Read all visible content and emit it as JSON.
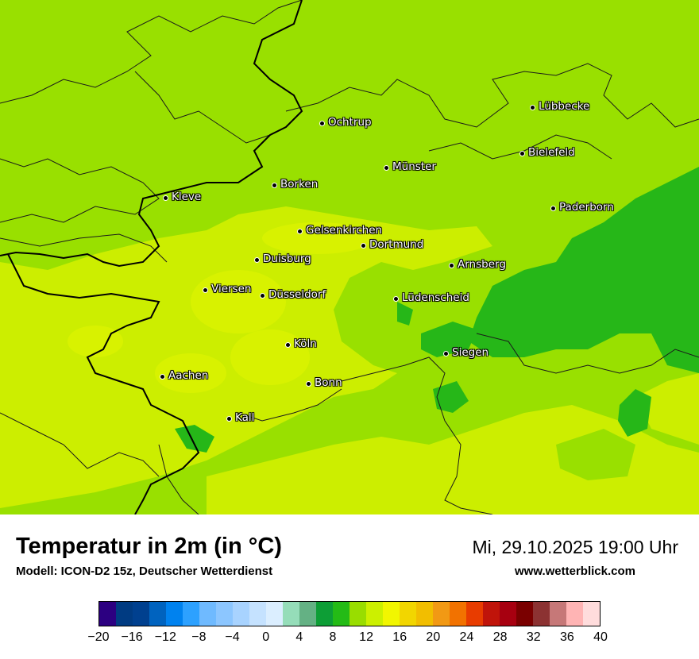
{
  "title": "Temperatur in 2m (in °C)",
  "model": "Modell: ICON-D2 15z, Deutscher Wetterdienst",
  "datetime": "Mi, 29.10.2025 19:00 Uhr",
  "url": "www.wetterblick.com",
  "cities": [
    {
      "name": "Lübbecke"
    },
    {
      "name": "Ochtrup"
    },
    {
      "name": "Bielefeld"
    },
    {
      "name": "Münster"
    },
    {
      "name": "Borken"
    },
    {
      "name": "Kleve"
    },
    {
      "name": "Paderborn"
    },
    {
      "name": "Gelsenkirchen"
    },
    {
      "name": "Dortmund"
    },
    {
      "name": "Duisburg"
    },
    {
      "name": "Arnsberg"
    },
    {
      "name": "Viersen"
    },
    {
      "name": "Düsseldorf"
    },
    {
      "name": "Lüdenscheid"
    },
    {
      "name": "Köln"
    },
    {
      "name": "Siegen"
    },
    {
      "name": "Aachen"
    },
    {
      "name": "Bonn"
    },
    {
      "name": "Kall"
    }
  ],
  "colorbar": {
    "ticks": [
      "−20",
      "−16",
      "−12",
      "−8",
      "−4",
      "0",
      "4",
      "8",
      "12",
      "16",
      "20",
      "24",
      "28",
      "32",
      "36",
      "40"
    ],
    "colors": [
      "#2c0081",
      "#003b82",
      "#00408f",
      "#0063bf",
      "#0082ef",
      "#2da1ff",
      "#6fbaff",
      "#8cc6ff",
      "#a8d3ff",
      "#c5e2ff",
      "#dbeeff",
      "#95ddb9",
      "#64b184",
      "#0d9e36",
      "#24bb16",
      "#99dd00",
      "#ccf000",
      "#f2f600",
      "#f2d600",
      "#f2be00",
      "#f29914",
      "#f27200",
      "#e83c00",
      "#c0140a",
      "#a70010",
      "#7a0000",
      "#8c3232",
      "#c67878",
      "#ffb4b4",
      "#ffdcdc"
    ]
  },
  "map_colors": {
    "base": "#99e000",
    "warmer": "#ccee00",
    "cooler": "#26b718",
    "border_country": "#000000",
    "border_region": "#1a1a1a"
  }
}
